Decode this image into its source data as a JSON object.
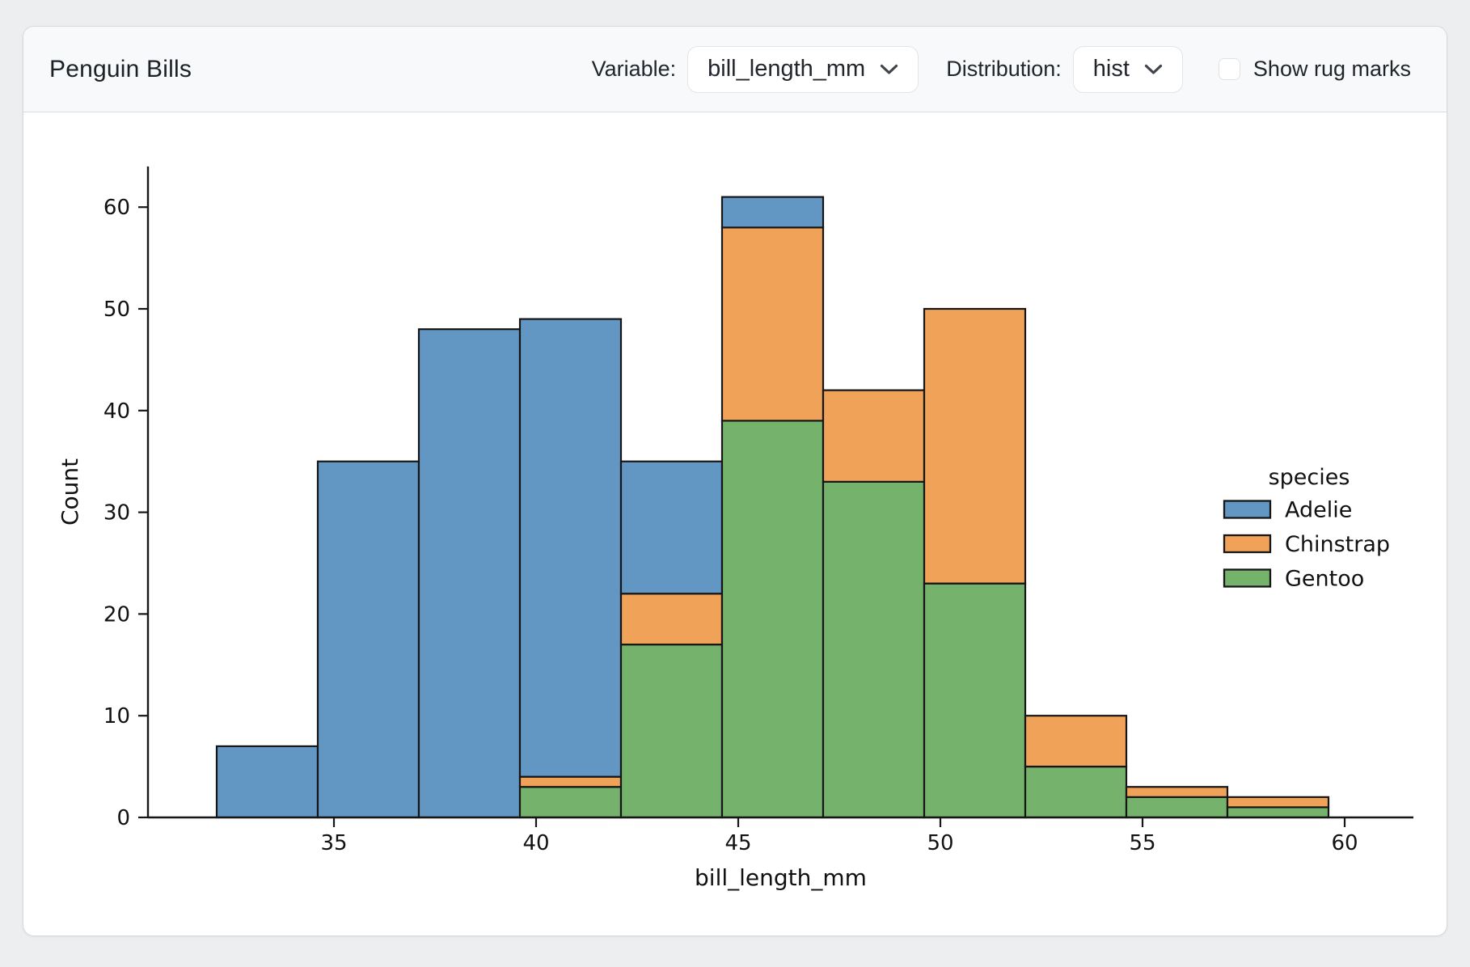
{
  "page": {
    "background": "#edeef0"
  },
  "header": {
    "title": "Penguin Bills",
    "variable_label": "Variable:",
    "variable_value": "bill_length_mm",
    "distribution_label": "Distribution:",
    "distribution_value": "hist",
    "rug_label": "Show rug marks",
    "rug_checked": false
  },
  "chart_data": {
    "type": "bar",
    "subtype": "stacked-histogram",
    "title": "",
    "xlabel": "bill_length_mm",
    "ylabel": "Count",
    "bin_edges": [
      32.1,
      34.6,
      37.1,
      39.6,
      42.1,
      44.6,
      47.1,
      49.6,
      52.1,
      54.6,
      57.1,
      59.6
    ],
    "series": [
      {
        "name": "Adelie",
        "color": "#6397c3",
        "values": [
          7,
          35,
          48,
          45,
          13,
          3,
          0,
          0,
          0,
          0,
          0
        ]
      },
      {
        "name": "Chinstrap",
        "color": "#f0a259",
        "values": [
          0,
          0,
          0,
          1,
          5,
          19,
          9,
          27,
          5,
          1,
          1
        ]
      },
      {
        "name": "Gentoo",
        "color": "#75b36c",
        "values": [
          0,
          0,
          0,
          3,
          17,
          39,
          33,
          23,
          5,
          2,
          1
        ]
      }
    ],
    "stack_order": [
      "Gentoo",
      "Chinstrap",
      "Adelie"
    ],
    "totals": [
      7,
      35,
      48,
      49,
      35,
      61,
      42,
      50,
      10,
      3,
      2
    ],
    "xticks": [
      35,
      40,
      45,
      50,
      55,
      60
    ],
    "yticks": [
      0,
      10,
      20,
      30,
      40,
      50,
      60
    ],
    "xlim": [
      30.4,
      61.7
    ],
    "ylim": [
      0,
      64
    ],
    "grid": false,
    "edge_color": "#161616",
    "legend": {
      "title": "species",
      "entries": [
        "Adelie",
        "Chinstrap",
        "Gentoo"
      ],
      "position": "right"
    }
  }
}
